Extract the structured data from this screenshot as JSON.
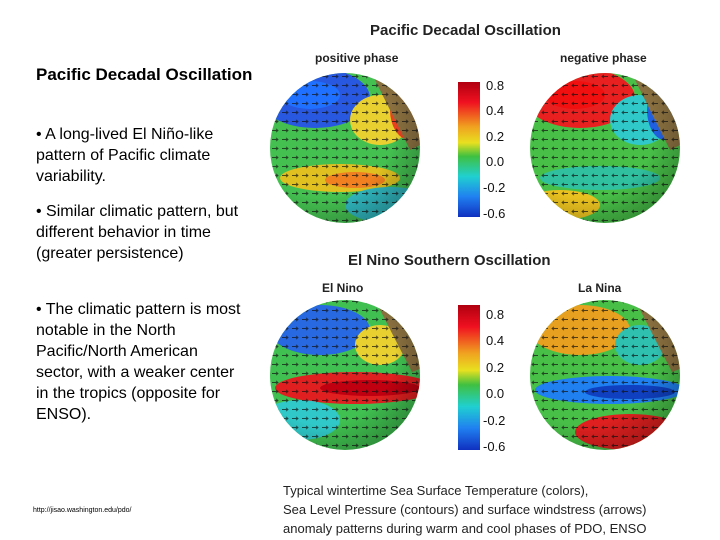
{
  "slide": {
    "title": "Pacific Decadal Oscillation",
    "bullets": [
      "• A long-lived El Niño-like pattern of Pacific climate variability.",
      "• Similar climatic pattern, but different behavior in time (greater persistence)",
      "• The climatic pattern is most notable in the North Pacific/North American sector, with a weaker center in the tropics (opposite for ENSO)."
    ],
    "source_url": "http://jisao.washington.edu/pdo/",
    "caption_lines": [
      "Typical wintertime Sea Surface Temperature (colors),",
      " Sea Level Pressure (contours) and surface windstress (arrows)",
      "anomaly patterns during warm and cool phases of PDO, ENSO"
    ]
  },
  "figure": {
    "pdo": {
      "title": "Pacific Decadal Oscillation",
      "left_label": "positive phase",
      "right_label": "negative phase"
    },
    "enso": {
      "title": "El Nino Southern Oscillation",
      "left_label": "El Nino",
      "right_label": "La Nina"
    },
    "colorbar_ticks": [
      "0.8",
      "0.4",
      "0.2",
      "0.0",
      "-0.2",
      "-0.6"
    ],
    "colorbar_ticks_enso": [
      "0.8",
      "0.4",
      "0.2",
      "0.0",
      "-0.2",
      "-0.6"
    ],
    "colors": {
      "ocean_neutral": "#3cc050",
      "warm": "#e02020",
      "cool": "#2060e0",
      "land": "#8a7040"
    }
  }
}
